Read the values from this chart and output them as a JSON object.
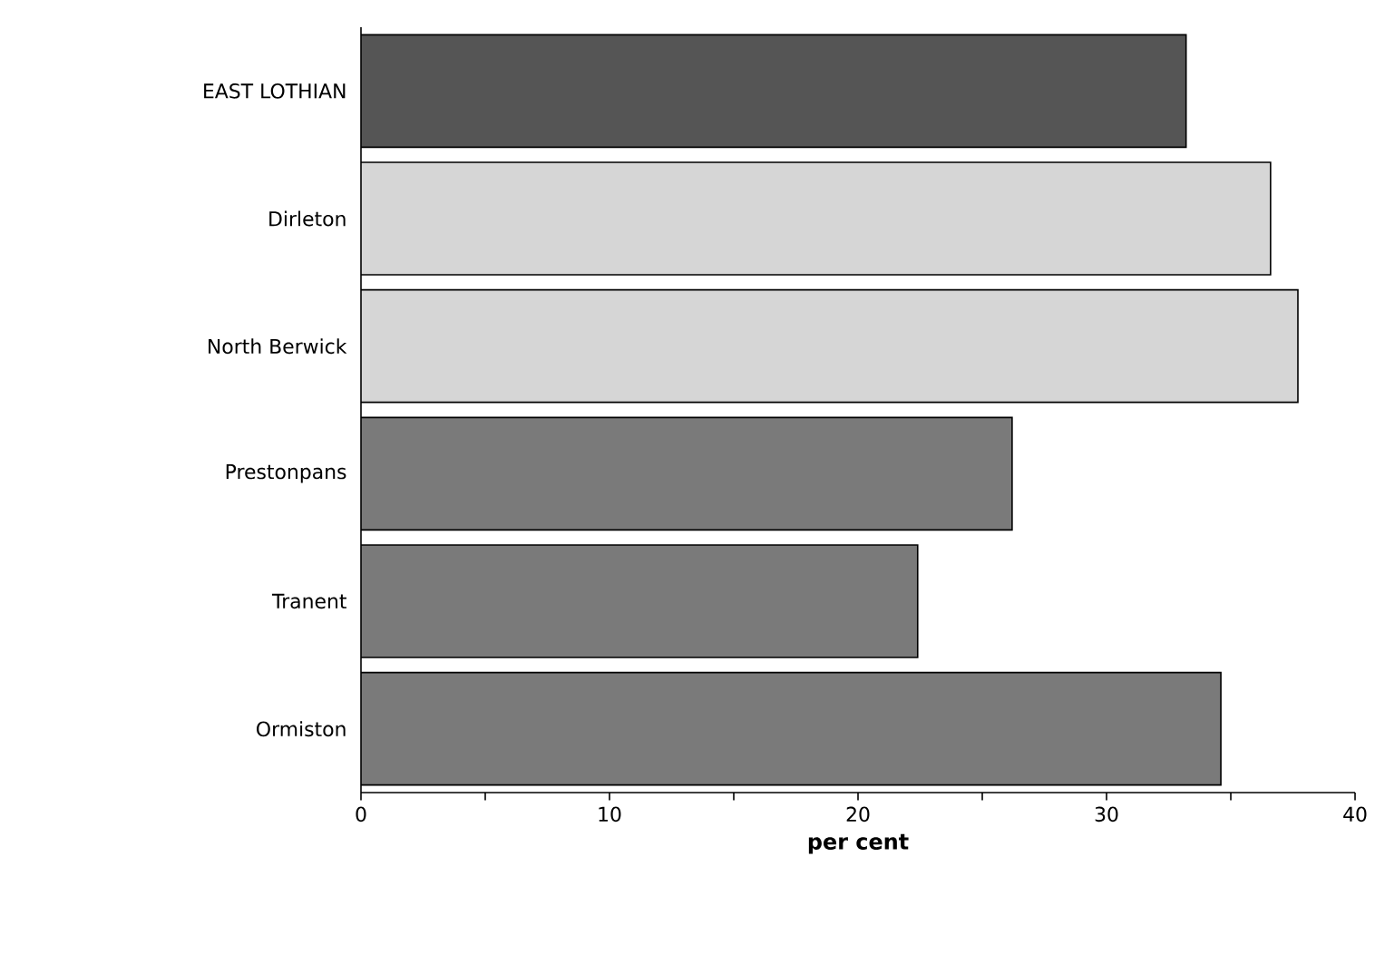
{
  "chart_data": {
    "type": "bar",
    "orientation": "horizontal",
    "xlabel": "per cent",
    "categories": [
      "EAST LOTHIAN",
      "Dirleton",
      "North Berwick",
      "Prestonpans",
      "Tranent",
      "Ormiston"
    ],
    "values": [
      33.2,
      36.6,
      37.7,
      26.2,
      22.4,
      34.6
    ],
    "colors": [
      "#555555",
      "#d6d6d6",
      "#d6d6d6",
      "#7a7a7a",
      "#7a7a7a",
      "#7a7a7a"
    ],
    "xlim": [
      0,
      40
    ],
    "xticks": [
      0,
      {
        "value": 5,
        "label": null
      },
      10,
      {
        "value": 15,
        "label": null
      },
      20,
      {
        "value": 25,
        "label": null
      },
      30,
      {
        "value": 35,
        "label": null
      },
      40
    ]
  }
}
